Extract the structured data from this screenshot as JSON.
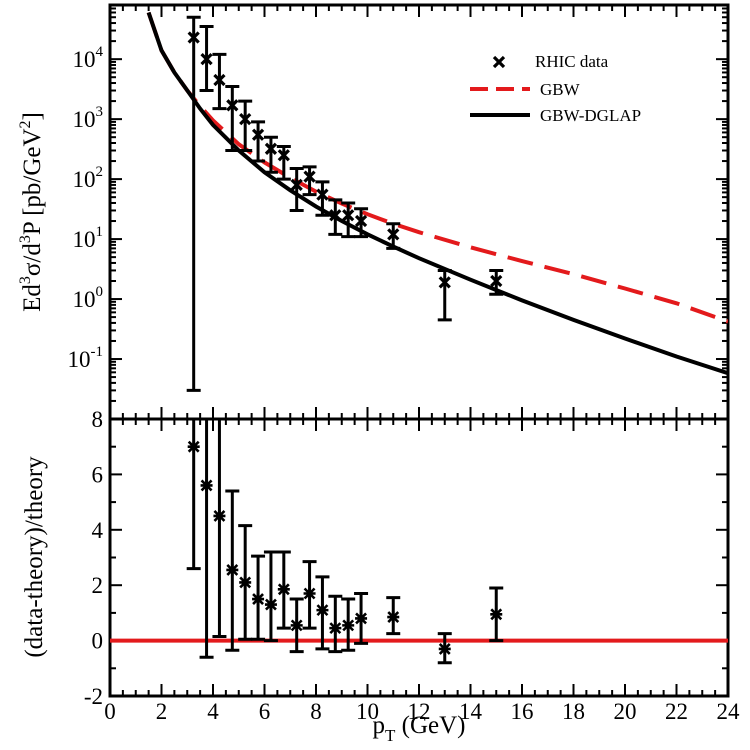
{
  "chart_data": [
    {
      "type": "scatter",
      "panel": "top",
      "yscale": "log",
      "xlim": [
        0,
        24
      ],
      "ylim": [
        0.01,
        80000
      ],
      "ylabel_parts": [
        "Ed",
        "3",
        "σ/d",
        "3",
        "P [pb/GeV",
        "2",
        "]"
      ],
      "ytick_labels": [
        {
          "value": 10000,
          "base": "10",
          "exp": "4"
        },
        {
          "value": 1000,
          "base": "10",
          "exp": "3"
        },
        {
          "value": 100,
          "base": "10",
          "exp": "2"
        },
        {
          "value": 10,
          "base": "10",
          "exp": "1"
        },
        {
          "value": 1,
          "base": "10",
          "exp": "0"
        },
        {
          "value": 0.1,
          "base": "10",
          "exp": "-1"
        }
      ],
      "legend": {
        "position": "top-right",
        "entries": [
          {
            "label": "RHIC data",
            "style": "marker-x"
          },
          {
            "label": "GBW",
            "style": "dashed",
            "color": "#e31a1c"
          },
          {
            "label": "GBW-DGLAP",
            "style": "solid",
            "color": "#000000"
          }
        ]
      },
      "series": [
        {
          "name": "RHIC data",
          "style": "markers",
          "color": "#000000",
          "points": [
            {
              "x": 3.25,
              "y": 23000,
              "lo": 0.03,
              "hi": 50000
            },
            {
              "x": 3.75,
              "y": 10000,
              "lo": 3000,
              "hi": 35000
            },
            {
              "x": 4.25,
              "y": 4500,
              "lo": 1500,
              "hi": 12000
            },
            {
              "x": 4.75,
              "y": 1700,
              "lo": 300,
              "hi": 3500
            },
            {
              "x": 5.25,
              "y": 1000,
              "lo": 300,
              "hi": 2000
            },
            {
              "x": 5.75,
              "y": 550,
              "lo": 200,
              "hi": 900
            },
            {
              "x": 6.25,
              "y": 320,
              "lo": 130,
              "hi": 500
            },
            {
              "x": 6.75,
              "y": 250,
              "lo": 100,
              "hi": 350
            },
            {
              "x": 7.25,
              "y": 80,
              "lo": 30,
              "hi": 150
            },
            {
              "x": 7.75,
              "y": 110,
              "lo": 55,
              "hi": 160
            },
            {
              "x": 8.25,
              "y": 55,
              "lo": 25,
              "hi": 90
            },
            {
              "x": 8.75,
              "y": 25,
              "lo": 12,
              "hi": 45
            },
            {
              "x": 9.25,
              "y": 25,
              "lo": 11,
              "hi": 40
            },
            {
              "x": 9.75,
              "y": 20,
              "lo": 11,
              "hi": 32
            },
            {
              "x": 11,
              "y": 12,
              "lo": 7,
              "hi": 18
            },
            {
              "x": 13,
              "y": 1.9,
              "lo": 0.45,
              "hi": 3
            },
            {
              "x": 15,
              "y": 2,
              "lo": 1.2,
              "hi": 3
            }
          ]
        },
        {
          "name": "GBW",
          "style": "dashed",
          "color": "#e31a1c",
          "x": [
            1.5,
            2,
            2.5,
            3,
            3.5,
            4,
            5,
            6,
            7,
            8,
            9,
            10,
            11,
            12,
            14,
            16,
            18,
            20,
            22,
            24
          ],
          "y": [
            60000,
            14000,
            6000,
            3000,
            1650,
            950,
            380,
            190,
            105,
            62,
            39,
            26,
            18,
            13,
            7.3,
            4.3,
            2.6,
            1.5,
            0.85,
            0.42
          ]
        },
        {
          "name": "GBW-DGLAP",
          "style": "solid",
          "color": "#000000",
          "x": [
            1.5,
            2,
            2.5,
            3,
            3.5,
            4,
            5,
            6,
            7,
            8,
            9,
            10,
            11,
            12,
            14,
            16,
            18,
            20,
            22,
            24
          ],
          "y": [
            60000,
            14000,
            6000,
            3000,
            1500,
            800,
            300,
            130,
            65,
            35,
            20,
            12,
            7.5,
            4.8,
            2.1,
            0.95,
            0.45,
            0.22,
            0.11,
            0.058
          ]
        }
      ]
    },
    {
      "type": "scatter",
      "panel": "bottom",
      "xlabel_parts": [
        "p",
        "T",
        " (GeV)"
      ],
      "ylabel": "(data-theory)/theory",
      "xlim": [
        0,
        24
      ],
      "ylim": [
        -2,
        8
      ],
      "xticks": [
        0,
        2,
        4,
        6,
        8,
        10,
        12,
        14,
        16,
        18,
        20,
        22,
        24
      ],
      "xtick_labels": [
        "0",
        "2",
        "4",
        "6",
        "8",
        "10",
        "12",
        "14",
        "16",
        "18",
        "20",
        "22",
        "24"
      ],
      "yticks": [
        -2,
        0,
        2,
        4,
        6,
        8
      ],
      "ytick_labels": [
        "-2",
        "0",
        "2",
        "4",
        "6",
        "8"
      ],
      "series": [
        {
          "name": "",
          "style": "markers",
          "color": "#000000",
          "points": [
            {
              "x": 3.25,
              "y": 7,
              "lo": 2.6,
              "hi": 8
            },
            {
              "x": 3.75,
              "y": 5.6,
              "lo": -0.6,
              "hi": 8
            },
            {
              "x": 4.25,
              "y": 4.5,
              "lo": 0.15,
              "hi": 8
            },
            {
              "x": 4.75,
              "y": 2.55,
              "lo": -0.35,
              "hi": 5.4
            },
            {
              "x": 5.25,
              "y": 2.1,
              "lo": 0.05,
              "hi": 4.15
            },
            {
              "x": 5.75,
              "y": 1.5,
              "lo": 0.05,
              "hi": 3.05
            },
            {
              "x": 6.25,
              "y": 1.3,
              "lo": 0,
              "hi": 3.2
            },
            {
              "x": 6.75,
              "y": 1.85,
              "lo": 0.45,
              "hi": 3.2
            },
            {
              "x": 7.25,
              "y": 0.55,
              "lo": -0.4,
              "hi": 1.5
            },
            {
              "x": 7.75,
              "y": 1.7,
              "lo": 0.45,
              "hi": 2.85
            },
            {
              "x": 8.25,
              "y": 1.1,
              "lo": -0.3,
              "hi": 2.3
            },
            {
              "x": 8.75,
              "y": 0.45,
              "lo": -0.4,
              "hi": 1.6
            },
            {
              "x": 9.25,
              "y": 0.55,
              "lo": -0.35,
              "hi": 1.5
            },
            {
              "x": 9.75,
              "y": 0.8,
              "lo": -0.1,
              "hi": 1.7
            },
            {
              "x": 11,
              "y": 0.85,
              "lo": 0.25,
              "hi": 1.55
            },
            {
              "x": 13,
              "y": -0.3,
              "lo": -0.8,
              "hi": 0.25
            },
            {
              "x": 15,
              "y": 0.95,
              "lo": 0,
              "hi": 1.9
            }
          ]
        },
        {
          "name": "",
          "style": "solid",
          "color": "#e31a1c",
          "x": [
            0,
            24
          ],
          "y": [
            0,
            0
          ]
        }
      ]
    }
  ]
}
